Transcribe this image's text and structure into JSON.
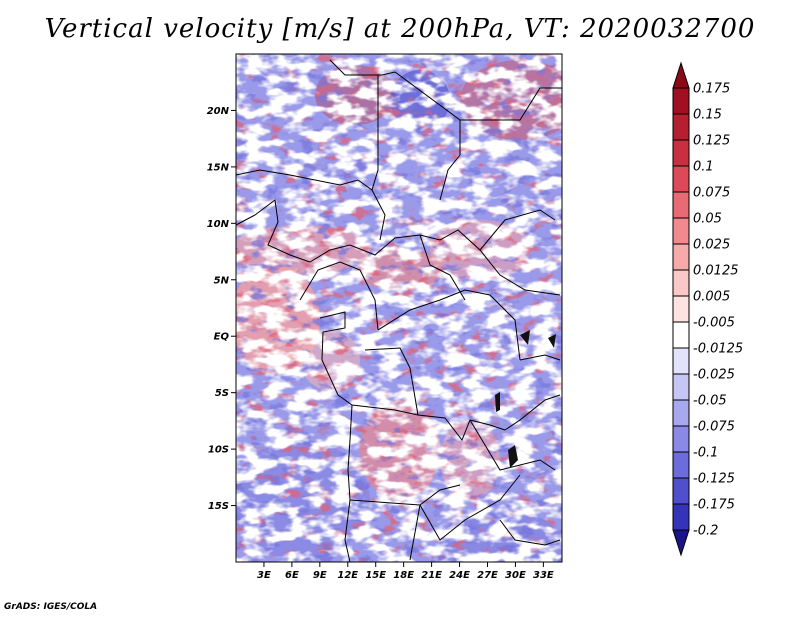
{
  "title": "Vertical velocity [m/s] at 200hPa, VT: 2020032700",
  "credit": "GrADS: IGES/COLA",
  "map": {
    "variable": "vertical velocity",
    "units": "m/s",
    "level": "200hPa",
    "valid_time": "2020032700",
    "lon_range": [
      0,
      35
    ],
    "lat_range": [
      -20,
      25
    ],
    "lon_ticks": [
      {
        "value": 3,
        "label": "3E"
      },
      {
        "value": 6,
        "label": "6E"
      },
      {
        "value": 9,
        "label": "9E"
      },
      {
        "value": 12,
        "label": "12E"
      },
      {
        "value": 15,
        "label": "15E"
      },
      {
        "value": 18,
        "label": "18E"
      },
      {
        "value": 21,
        "label": "21E"
      },
      {
        "value": 24,
        "label": "24E"
      },
      {
        "value": 27,
        "label": "27E"
      },
      {
        "value": 30,
        "label": "30E"
      },
      {
        "value": 33,
        "label": "33E"
      }
    ],
    "lat_ticks": [
      {
        "value": 20,
        "label": "20N"
      },
      {
        "value": 15,
        "label": "15N"
      },
      {
        "value": 10,
        "label": "10N"
      },
      {
        "value": 5,
        "label": "5N"
      },
      {
        "value": 0,
        "label": "EQ"
      },
      {
        "value": -5,
        "label": "5S"
      },
      {
        "value": -10,
        "label": "10S"
      },
      {
        "value": -15,
        "label": "15S"
      }
    ]
  },
  "colorbar": {
    "levels": [
      {
        "label": "0.175",
        "color": "#a01020"
      },
      {
        "label": "0.15",
        "color": "#b42030"
      },
      {
        "label": "0.125",
        "color": "#c83040"
      },
      {
        "label": "0.1",
        "color": "#dc4a58"
      },
      {
        "label": "0.075",
        "color": "#e86a72"
      },
      {
        "label": "0.05",
        "color": "#f08a8e"
      },
      {
        "label": "0.025",
        "color": "#f6aaaa"
      },
      {
        "label": "0.0125",
        "color": "#fac8c6"
      },
      {
        "label": "0.005",
        "color": "#fde4e2"
      },
      {
        "label": "-0.005",
        "color": "#ffffff"
      },
      {
        "label": "-0.0125",
        "color": "#e2e2fa"
      },
      {
        "label": "-0.025",
        "color": "#c6c6f4"
      },
      {
        "label": "-0.05",
        "color": "#a8a8ee"
      },
      {
        "label": "-0.075",
        "color": "#8a8ae6"
      },
      {
        "label": "-0.1",
        "color": "#6c6cdc"
      },
      {
        "label": "-0.125",
        "color": "#5050cc"
      },
      {
        "label": "-0.175",
        "color": "#3434b8"
      },
      {
        "label": "-0.2",
        "color": "#2020a0"
      }
    ],
    "top_arrow_color": "#8a0a18",
    "bottom_arrow_color": "#1a1488"
  }
}
